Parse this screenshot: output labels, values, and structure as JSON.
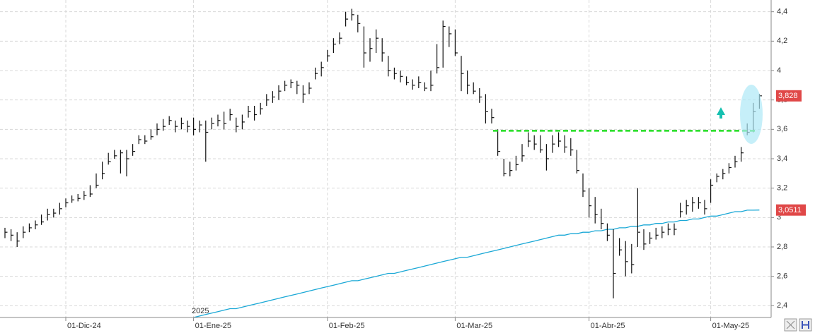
{
  "chart_data": {
    "type": "ohlc",
    "categories": [
      null,
      null,
      null,
      null,
      null,
      null,
      null,
      null,
      null,
      null,
      "01-Dic-24",
      null,
      null,
      null,
      null,
      null,
      null,
      null,
      null,
      null,
      null,
      null,
      null,
      null,
      null,
      null,
      null,
      null,
      null,
      null,
      null,
      "01-Ene-25",
      null,
      null,
      null,
      null,
      null,
      null,
      null,
      null,
      null,
      null,
      null,
      null,
      null,
      null,
      null,
      null,
      null,
      null,
      null,
      null,
      null,
      "01-Feb-25",
      null,
      null,
      null,
      null,
      null,
      null,
      null,
      null,
      null,
      null,
      null,
      null,
      null,
      null,
      null,
      null,
      null,
      null,
      null,
      null,
      "01-Mar-25",
      null,
      null,
      null,
      null,
      null,
      null,
      null,
      null,
      null,
      null,
      null,
      null,
      null,
      null,
      null,
      null,
      null,
      null,
      null,
      null,
      null,
      "01-Abr-25",
      null,
      null,
      null,
      null,
      null,
      null,
      null,
      null,
      null,
      null,
      null,
      null,
      null,
      null,
      null,
      null,
      null,
      null,
      null,
      "01-May-25",
      null,
      null,
      null,
      null,
      null,
      null,
      null,
      null
    ],
    "high": [
      2.93,
      2.92,
      2.9,
      2.94,
      2.96,
      2.98,
      3.02,
      3.06,
      3.06,
      3.1,
      3.13,
      3.15,
      3.16,
      3.18,
      3.22,
      3.3,
      3.38,
      3.44,
      3.46,
      3.46,
      3.46,
      3.5,
      3.56,
      3.56,
      3.6,
      3.64,
      3.67,
      3.69,
      3.66,
      3.68,
      3.66,
      3.68,
      3.66,
      3.66,
      3.68,
      3.7,
      3.72,
      3.74,
      3.68,
      3.7,
      3.76,
      3.76,
      3.78,
      3.84,
      3.86,
      3.9,
      3.93,
      3.94,
      3.93,
      3.9,
      3.92,
      4.02,
      4.06,
      4.14,
      4.22,
      4.26,
      4.4,
      4.42,
      4.38,
      4.3,
      4.22,
      4.28,
      4.22,
      4.1,
      4.02,
      4.0,
      3.96,
      3.94,
      3.96,
      3.92,
      4.0,
      4.18,
      4.34,
      4.3,
      4.28,
      4.1,
      4.0,
      3.92,
      3.88,
      3.84,
      3.74,
      3.6,
      3.4,
      3.38,
      3.42,
      3.5,
      3.58,
      3.56,
      3.56,
      3.5,
      3.56,
      3.58,
      3.56,
      3.54,
      3.46,
      3.3,
      3.2,
      3.14,
      3.06,
      2.96,
      2.92,
      2.86,
      2.84,
      2.82,
      3.2,
      2.92,
      2.9,
      2.93,
      2.94,
      2.96,
      2.96,
      3.1,
      3.12,
      3.14,
      3.14,
      3.12,
      3.26,
      3.3,
      3.33,
      3.37,
      3.42,
      3.48,
      3.64,
      3.78,
      3.84
    ],
    "low": [
      2.86,
      2.84,
      2.8,
      2.86,
      2.9,
      2.92,
      2.95,
      2.98,
      3.0,
      3.02,
      3.07,
      3.1,
      3.11,
      3.12,
      3.14,
      3.2,
      3.26,
      3.36,
      3.4,
      3.3,
      3.28,
      3.42,
      3.5,
      3.5,
      3.53,
      3.56,
      3.59,
      3.63,
      3.58,
      3.6,
      3.58,
      3.56,
      3.58,
      3.38,
      3.6,
      3.62,
      3.6,
      3.66,
      3.58,
      3.6,
      3.68,
      3.66,
      3.7,
      3.76,
      3.78,
      3.8,
      3.86,
      3.88,
      3.84,
      3.78,
      3.84,
      3.94,
      3.96,
      4.06,
      4.12,
      4.18,
      4.3,
      4.34,
      4.26,
      4.02,
      4.06,
      4.12,
      4.06,
      3.96,
      3.94,
      3.92,
      3.9,
      3.87,
      3.88,
      3.86,
      3.86,
      3.98,
      4.02,
      4.16,
      4.1,
      3.86,
      3.84,
      3.84,
      3.78,
      3.64,
      3.64,
      3.42,
      3.28,
      3.28,
      3.32,
      3.38,
      3.48,
      3.46,
      3.44,
      3.32,
      3.44,
      3.48,
      3.44,
      3.42,
      3.3,
      3.14,
      3.0,
      2.96,
      2.92,
      2.84,
      2.45,
      2.74,
      2.6,
      2.62,
      2.8,
      2.78,
      2.82,
      2.85,
      2.86,
      2.88,
      2.88,
      3.0,
      3.02,
      3.04,
      3.06,
      3.02,
      3.1,
      3.24,
      3.26,
      3.3,
      3.34,
      3.38,
      3.56,
      3.58,
      3.74
    ],
    "close": [
      2.9,
      2.88,
      2.84,
      2.9,
      2.93,
      2.95,
      2.97,
      3.02,
      3.03,
      3.06,
      3.1,
      3.12,
      3.13,
      3.15,
      3.16,
      3.22,
      3.3,
      3.38,
      3.42,
      3.44,
      3.4,
      3.45,
      3.53,
      3.52,
      3.55,
      3.6,
      3.62,
      3.66,
      3.62,
      3.64,
      3.62,
      3.6,
      3.63,
      3.58,
      3.64,
      3.66,
      3.64,
      3.7,
      3.62,
      3.65,
      3.72,
      3.7,
      3.74,
      3.8,
      3.82,
      3.86,
      3.9,
      3.92,
      3.9,
      3.84,
      3.88,
      3.98,
      4.02,
      4.1,
      4.18,
      4.22,
      4.35,
      4.38,
      4.32,
      4.12,
      4.15,
      4.22,
      4.12,
      4.0,
      3.98,
      3.96,
      3.92,
      3.9,
      3.92,
      3.88,
      3.9,
      4.02,
      4.3,
      4.25,
      4.12,
      3.98,
      3.9,
      3.86,
      3.82,
      3.72,
      3.68,
      3.45,
      3.3,
      3.32,
      3.36,
      3.42,
      3.52,
      3.5,
      3.46,
      3.4,
      3.5,
      3.52,
      3.48,
      3.46,
      3.32,
      3.18,
      3.08,
      3.02,
      2.96,
      2.88,
      2.62,
      2.78,
      2.7,
      2.68,
      2.9,
      2.82,
      2.86,
      2.88,
      2.9,
      2.92,
      2.92,
      3.04,
      3.08,
      3.1,
      3.1,
      3.06,
      3.22,
      3.28,
      3.3,
      3.34,
      3.38,
      3.44,
      3.58,
      3.72,
      3.828
    ],
    "bar_color": "#111111",
    "ma": {
      "color": "#1aa8d6",
      "values": [
        null,
        null,
        null,
        null,
        null,
        null,
        null,
        null,
        null,
        null,
        null,
        null,
        null,
        null,
        null,
        null,
        null,
        null,
        null,
        null,
        null,
        null,
        null,
        null,
        null,
        null,
        null,
        null,
        null,
        null,
        null,
        2.32,
        2.33,
        2.34,
        2.35,
        2.36,
        2.37,
        2.38,
        2.38,
        2.39,
        2.4,
        2.41,
        2.42,
        2.43,
        2.44,
        2.45,
        2.46,
        2.47,
        2.48,
        2.49,
        2.5,
        2.51,
        2.52,
        2.53,
        2.54,
        2.55,
        2.56,
        2.57,
        2.57,
        2.58,
        2.59,
        2.6,
        2.61,
        2.62,
        2.62,
        2.63,
        2.64,
        2.65,
        2.66,
        2.67,
        2.68,
        2.69,
        2.7,
        2.71,
        2.72,
        2.73,
        2.73,
        2.74,
        2.75,
        2.76,
        2.77,
        2.78,
        2.79,
        2.8,
        2.81,
        2.82,
        2.83,
        2.84,
        2.85,
        2.86,
        2.87,
        2.88,
        2.88,
        2.89,
        2.89,
        2.9,
        2.9,
        2.91,
        2.91,
        2.92,
        2.92,
        2.93,
        2.93,
        2.94,
        2.94,
        2.95,
        2.95,
        2.96,
        2.96,
        2.97,
        2.97,
        2.98,
        2.98,
        2.99,
        2.99,
        3.0,
        3.01,
        3.01,
        3.02,
        3.03,
        3.04,
        3.04,
        3.05,
        3.05,
        3.0511
      ]
    },
    "level": {
      "value": 3.59,
      "color": "#22dd22"
    },
    "last_price": {
      "value": 3.828,
      "label": "3,828"
    },
    "ma_last": {
      "value": 3.0511,
      "label": "3,0511"
    },
    "year_label": "2025",
    "ylim": [
      2.32,
      4.48
    ],
    "yticks": [
      {
        "value": 2.4,
        "label": "2,4"
      },
      {
        "value": 2.6,
        "label": "2,6"
      },
      {
        "value": 2.8,
        "label": "2,8"
      },
      3,
      {
        "value": 3.2,
        "label": "3,2"
      },
      {
        "value": 3.4,
        "label": "3,4"
      },
      {
        "value": 3.6,
        "label": "3,6"
      },
      {
        "value": 3.8,
        "label": "3,8"
      },
      4,
      {
        "value": 4.2,
        "label": "4,2"
      },
      {
        "value": 4.4,
        "label": "4,4"
      }
    ],
    "grid": true
  }
}
